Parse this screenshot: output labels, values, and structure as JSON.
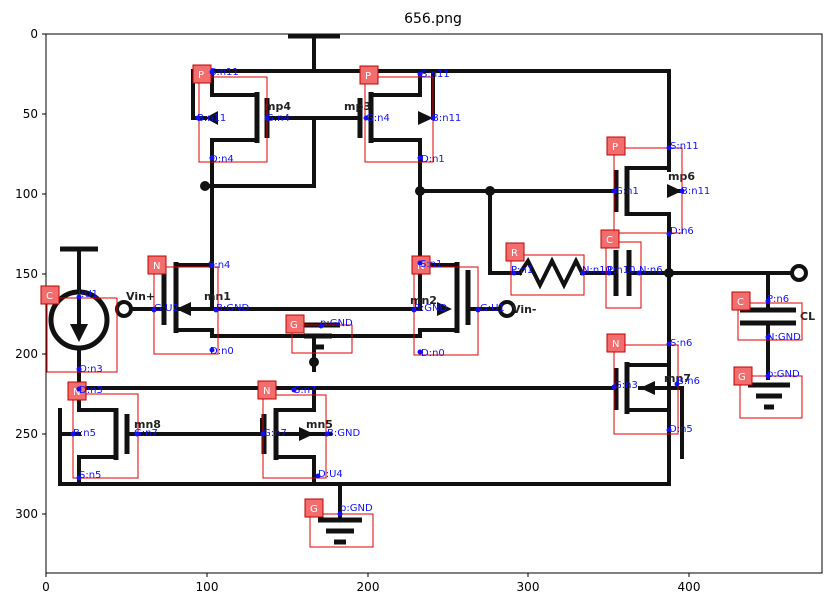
{
  "figure": {
    "title": "656.png",
    "x_ticks": [
      "0",
      "100",
      "200",
      "300",
      "400"
    ],
    "y_ticks": [
      "0",
      "50",
      "100",
      "150",
      "200",
      "250",
      "300"
    ]
  },
  "device_labels": [
    "mp4",
    "mp3",
    "mp6",
    "mn1",
    "mn2",
    "mn8",
    "mn5",
    "mn7",
    "CL",
    "Vin+",
    "Vin-"
  ],
  "components": [
    {
      "tag": "P",
      "pins": [
        "S:n11",
        "B:n11",
        "G:n4",
        "D:n4"
      ]
    },
    {
      "tag": "P",
      "pins": [
        "S:n11",
        "G:n4",
        "B:n11",
        "D:n1"
      ]
    },
    {
      "tag": "P",
      "pins": [
        "S:n11",
        "G:n1",
        "B:n11",
        "D:n6"
      ]
    },
    {
      "tag": "N",
      "pins": [
        "S:n4",
        "G:U2",
        "B:GND",
        "D:n0"
      ]
    },
    {
      "tag": "N",
      "pins": [
        "S:n1",
        "B:GND",
        "G:U1",
        "D:n0"
      ]
    },
    {
      "tag": "C",
      "pins": [
        "I:U1",
        "O:n3"
      ]
    },
    {
      "tag": "G",
      "pins": [
        "p:GND"
      ]
    },
    {
      "tag": "R",
      "pins": [
        "P:n1",
        "N:n10"
      ]
    },
    {
      "tag": "C",
      "pins": [
        "P:n10",
        "N:n6"
      ]
    },
    {
      "tag": "C",
      "pins": [
        "P:n6",
        "N:GND"
      ]
    },
    {
      "tag": "N",
      "pins": [
        "S:n6",
        "G:n3",
        "B:n6",
        "D:n5"
      ]
    },
    {
      "tag": "G",
      "pins": [
        "p:GND"
      ]
    },
    {
      "tag": "N",
      "pins": [
        "D:n3",
        "B:n5",
        "G:n7",
        "S:n5"
      ]
    },
    {
      "tag": "N",
      "pins": [
        "S:n7",
        "G:n7",
        "B:GND",
        "D:U4"
      ]
    },
    {
      "tag": "G",
      "pins": [
        "p:GND"
      ]
    }
  ]
}
